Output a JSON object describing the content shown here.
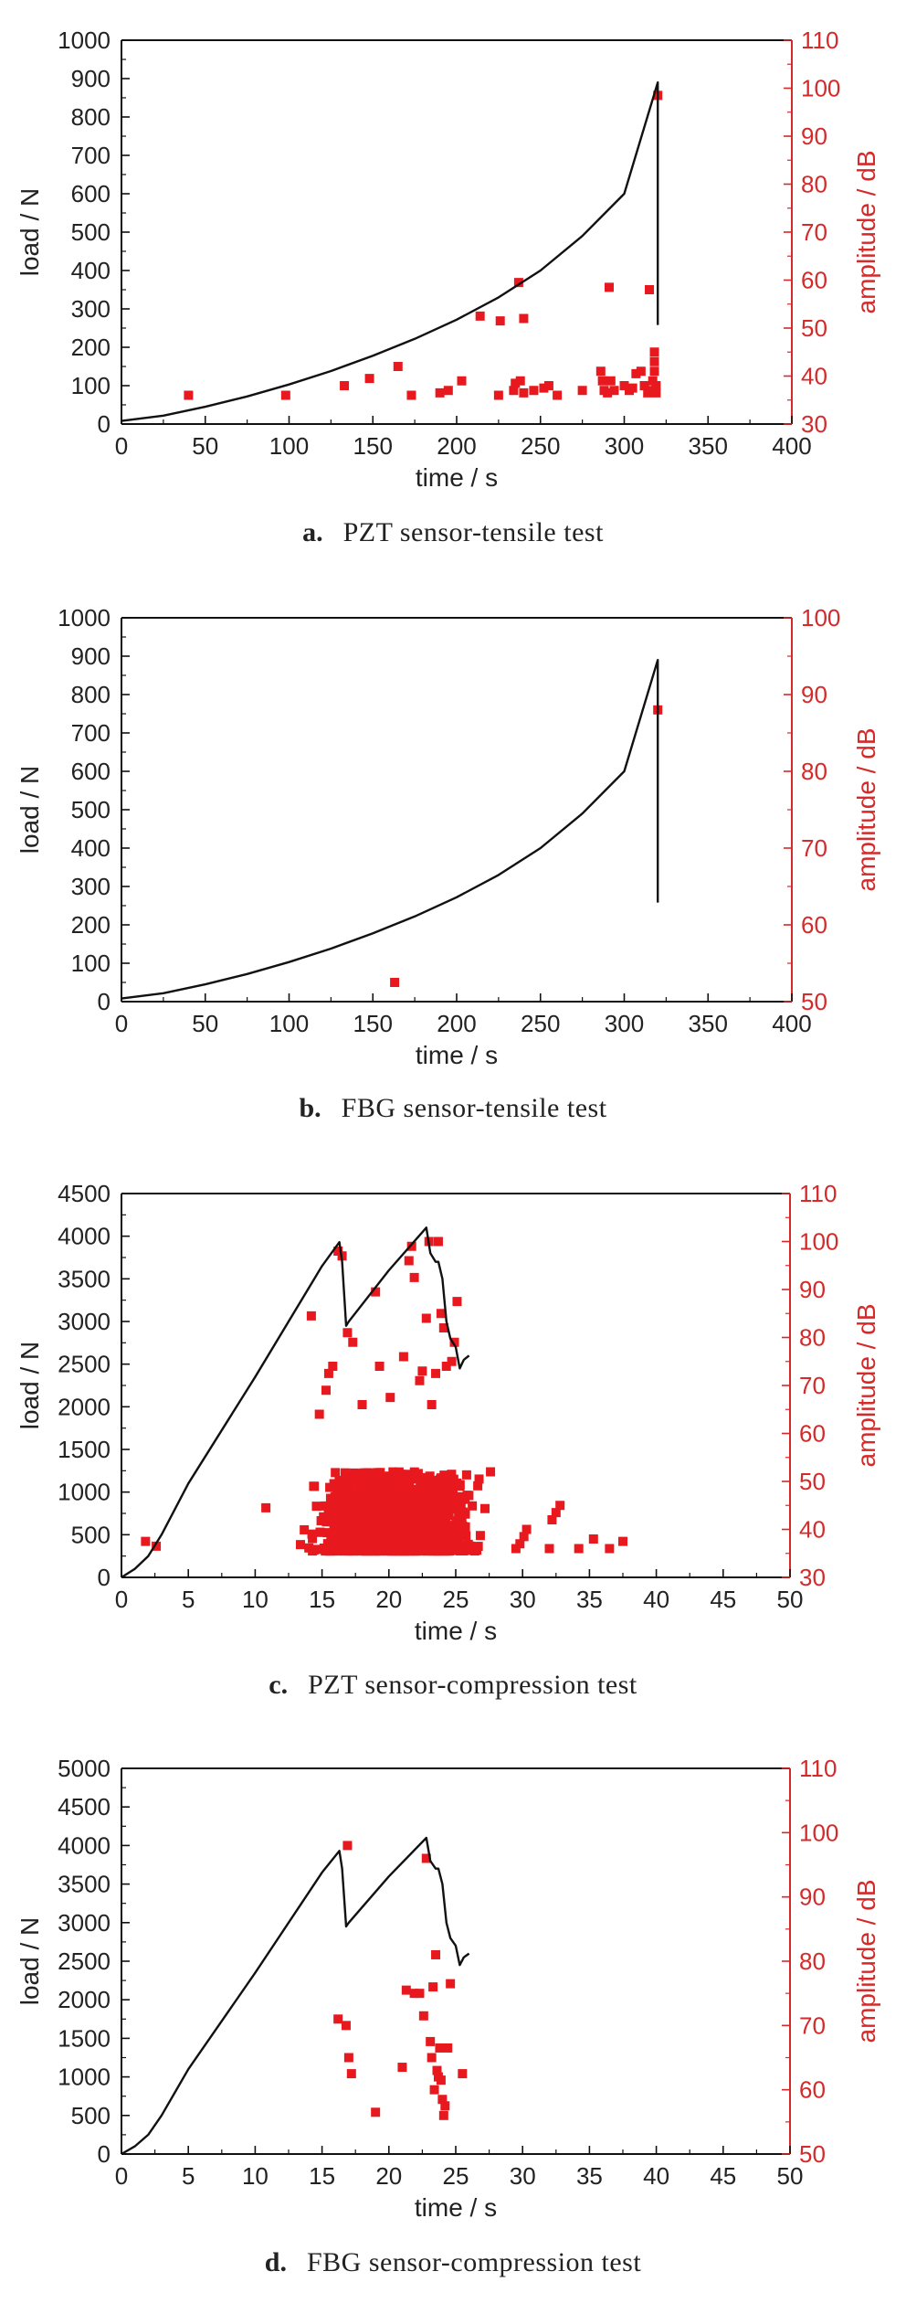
{
  "chart_data": [
    {
      "type": "line+scatter",
      "caption_letter": "a.",
      "caption": "PZT sensor-tensile test",
      "xlabel": "time / s",
      "ylabel": "load / N",
      "y2label": "amplitude / dB",
      "xlim": [
        0,
        400
      ],
      "xticks": [
        0,
        50,
        100,
        150,
        200,
        250,
        300,
        350,
        400
      ],
      "ylim": [
        0,
        1000
      ],
      "yticks": [
        0,
        100,
        200,
        300,
        400,
        500,
        600,
        700,
        800,
        900,
        1000
      ],
      "y2lim": [
        30,
        110
      ],
      "y2ticks": [
        30,
        40,
        50,
        60,
        70,
        80,
        90,
        100,
        110
      ],
      "line": {
        "name": "load",
        "color": "#111111",
        "x": [
          0,
          25,
          50,
          75,
          100,
          125,
          150,
          175,
          200,
          225,
          250,
          275,
          300,
          320,
          320
        ],
        "y": [
          8,
          22,
          45,
          72,
          103,
          138,
          178,
          222,
          272,
          330,
          400,
          490,
          600,
          890,
          258
        ]
      },
      "scatter": {
        "name": "amplitude",
        "color": "#e8191e",
        "axis": "right",
        "x": [
          40,
          98,
          133,
          148,
          165,
          173,
          190,
          195,
          203,
          214,
          225,
          226,
          234,
          235,
          237,
          238,
          240,
          240,
          246,
          252,
          255,
          260,
          275,
          286,
          287,
          288,
          290,
          291,
          292,
          294,
          300,
          303,
          305,
          307,
          310,
          312,
          314,
          315,
          316,
          317,
          318,
          318,
          318,
          319,
          319,
          320
        ],
        "y": [
          36,
          36,
          38,
          39.5,
          42,
          36,
          36.5,
          37,
          39,
          52.5,
          36,
          51.5,
          37,
          38.5,
          59.5,
          39,
          36.5,
          52,
          37,
          37.5,
          38,
          36,
          37,
          41,
          39,
          37,
          36.5,
          58.5,
          39,
          37,
          38,
          37,
          37.5,
          40.5,
          41,
          38,
          36.5,
          58,
          37,
          39,
          41,
          43,
          45,
          36.5,
          38,
          98.5
        ]
      }
    },
    {
      "type": "line+scatter",
      "caption_letter": "b.",
      "caption": "FBG sensor-tensile test",
      "xlabel": "time / s",
      "ylabel": "load / N",
      "y2label": "amplitude / dB",
      "xlim": [
        0,
        400
      ],
      "xticks": [
        0,
        50,
        100,
        150,
        200,
        250,
        300,
        350,
        400
      ],
      "ylim": [
        0,
        1000
      ],
      "yticks": [
        0,
        100,
        200,
        300,
        400,
        500,
        600,
        700,
        800,
        900,
        1000
      ],
      "y2lim": [
        50,
        100
      ],
      "y2ticks": [
        50,
        60,
        70,
        80,
        90,
        100
      ],
      "line": {
        "name": "load",
        "color": "#111111",
        "x": [
          0,
          25,
          50,
          75,
          100,
          125,
          150,
          175,
          200,
          225,
          250,
          275,
          300,
          320,
          320
        ],
        "y": [
          8,
          22,
          45,
          72,
          103,
          138,
          178,
          222,
          272,
          330,
          400,
          490,
          600,
          890,
          258
        ]
      },
      "scatter": {
        "name": "amplitude",
        "color": "#e8191e",
        "axis": "right",
        "x": [
          163,
          320
        ],
        "y": [
          52.5,
          88
        ]
      }
    },
    {
      "type": "line+scatter",
      "caption_letter": "c.",
      "caption": "PZT sensor-compression test",
      "xlabel": "time / s",
      "ylabel": "load / N",
      "y2label": "amplitude / dB",
      "xlim": [
        0,
        50
      ],
      "xticks": [
        0,
        5,
        10,
        15,
        20,
        25,
        30,
        35,
        40,
        45,
        50
      ],
      "ylim": [
        0,
        4500
      ],
      "yticks": [
        0,
        500,
        1000,
        1500,
        2000,
        2500,
        3000,
        3500,
        4000,
        4500
      ],
      "y2lim": [
        30,
        110
      ],
      "y2ticks": [
        30,
        40,
        50,
        60,
        70,
        80,
        90,
        100,
        110
      ],
      "line": {
        "name": "load",
        "color": "#111111",
        "x": [
          0,
          1,
          2,
          3,
          5,
          10,
          15,
          16.3,
          16.5,
          16.8,
          17,
          20,
          22.8,
          23.1,
          23.3,
          23.5,
          23.7,
          24,
          24.3,
          24.6,
          25,
          25.3,
          25.6,
          26
        ],
        "y": [
          0,
          100,
          250,
          500,
          1100,
          2350,
          3650,
          3930,
          3700,
          2950,
          3000,
          3600,
          4100,
          3800,
          3750,
          3700,
          3700,
          3500,
          3000,
          2800,
          2700,
          2450,
          2550,
          2600
        ]
      },
      "scatter": {
        "name": "amplitude",
        "color": "#e8191e",
        "axis": "right",
        "cluster": {
          "x_range": [
            12.8,
            27.8
          ],
          "y_range": [
            35.5,
            52
          ],
          "count": 1600,
          "seed": 7
        },
        "x": [
          1.8,
          2.6,
          10.8,
          14.2,
          14.8,
          15.3,
          15.5,
          15.8,
          16.2,
          16.5,
          16.9,
          17.3,
          18,
          19,
          19.3,
          20.1,
          21.1,
          21.5,
          21.7,
          21.9,
          22.3,
          22.5,
          22.8,
          23,
          23.2,
          23.5,
          23.7,
          23.9,
          24.1,
          24.3,
          24.7,
          24.9,
          25.1,
          27.6,
          29.5,
          29.8,
          30.1,
          30.3,
          32,
          32.2,
          32.5,
          32.8,
          34.2,
          35.3,
          36.5,
          37.5
        ],
        "y": [
          37.5,
          36.5,
          44.5,
          84.5,
          64,
          69,
          72.5,
          74,
          98,
          97,
          81,
          79,
          66,
          89.5,
          74,
          67.5,
          76,
          96,
          99,
          92.5,
          71,
          73,
          84,
          100,
          66,
          72.5,
          100,
          85,
          82,
          74,
          75,
          79,
          87.5,
          52,
          36,
          37,
          38.5,
          40,
          36,
          42,
          43.5,
          45,
          36,
          38,
          36,
          37.5
        ]
      }
    },
    {
      "type": "line+scatter",
      "caption_letter": "d.",
      "caption": "FBG sensor-compression test",
      "xlabel": "time / s",
      "ylabel": "load / N",
      "y2label": "amplitude / dB",
      "xlim": [
        0,
        50
      ],
      "xticks": [
        0,
        5,
        10,
        15,
        20,
        25,
        30,
        35,
        40,
        45,
        50
      ],
      "ylim": [
        0,
        5000
      ],
      "yticks": [
        0,
        500,
        1000,
        1500,
        2000,
        2500,
        3000,
        3500,
        4000,
        4500,
        5000
      ],
      "y2lim": [
        50,
        110
      ],
      "y2ticks": [
        50,
        60,
        70,
        80,
        90,
        100,
        110
      ],
      "line": {
        "name": "load",
        "color": "#111111",
        "x": [
          0,
          1,
          2,
          3,
          5,
          10,
          15,
          16.3,
          16.5,
          16.8,
          17,
          20,
          22.8,
          23.1,
          23.3,
          23.5,
          23.7,
          24,
          24.3,
          24.6,
          25,
          25.3,
          25.6,
          26
        ],
        "y": [
          0,
          100,
          250,
          500,
          1100,
          2350,
          3650,
          3930,
          3700,
          2950,
          3000,
          3600,
          4100,
          3800,
          3750,
          3700,
          3700,
          3500,
          3000,
          2800,
          2700,
          2450,
          2550,
          2600
        ]
      },
      "scatter": {
        "name": "amplitude",
        "color": "#e8191e",
        "axis": "right",
        "x": [
          16.2,
          16.8,
          17,
          17.2,
          16.9,
          19,
          21,
          21.3,
          21.9,
          22.3,
          22.6,
          22.8,
          23.2,
          23.3,
          23.5,
          23.6,
          23.7,
          23.8,
          23.9,
          24,
          24.2,
          24.4,
          24.6,
          25.5,
          23.1,
          23.4,
          24.1
        ],
        "y": [
          71,
          70,
          65,
          62.5,
          98,
          56.5,
          63.5,
          75.5,
          75,
          75,
          71.5,
          96,
          65,
          76,
          81,
          63,
          62,
          66.5,
          61.5,
          58.5,
          57.5,
          66.5,
          76.5,
          62.5,
          67.5,
          60,
          56
        ]
      }
    }
  ]
}
